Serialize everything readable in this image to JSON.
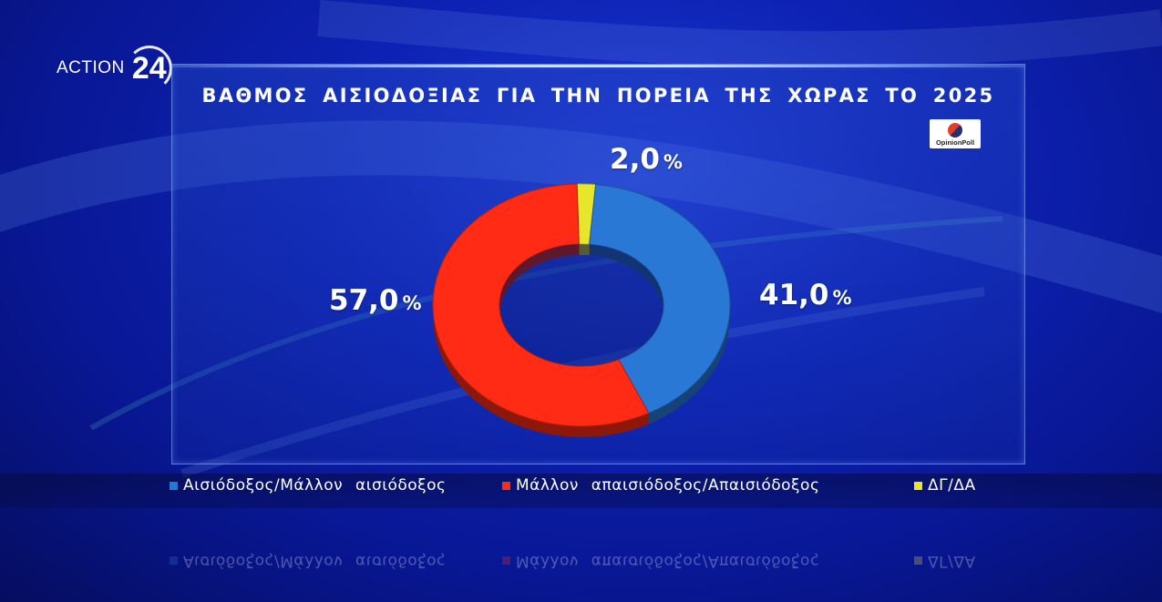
{
  "brand": {
    "logo_text": "ACTION",
    "logo_number": "24"
  },
  "source_badge": "OpinionPoll",
  "colors": {
    "optimistic": "#2a78d6",
    "pessimistic": "#ff2b14",
    "dk_na": "#e8e62a"
  },
  "chart_data": {
    "type": "pie",
    "title": "ΒΑΘΜΟΣ ΑΙΣΙΟΔΟΞΙΑΣ ΓΙΑ ΤΗΝ ΠΟΡΕΙΑ ΤΗΣ ΧΩΡΑΣ ΤΟ 2025",
    "style": "donut",
    "categories": [
      "Αισιόδοξος/Μάλλον αισιόδοξος",
      "Μάλλον απαισιόδοξος/Απαισιόδοξος",
      "ΔΓ/ΔΑ"
    ],
    "values": [
      41.0,
      57.0,
      2.0
    ],
    "value_labels": [
      "41,0",
      "57,0",
      "2,0"
    ],
    "unit": "%",
    "legend_position": "bottom"
  }
}
